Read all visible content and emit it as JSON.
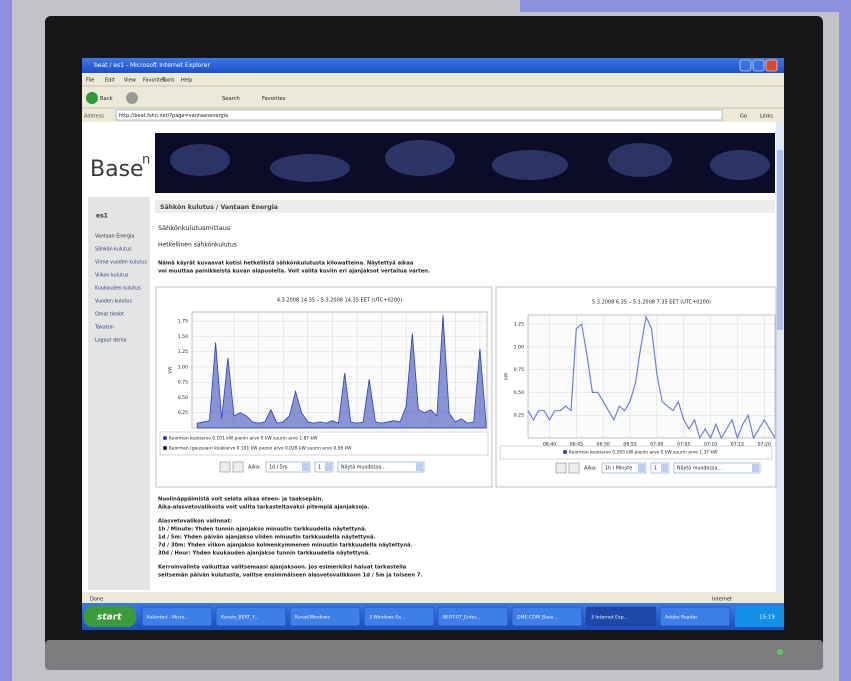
{
  "window": {
    "title": "beat / es1 - Microsoft Internet Explorer",
    "menu": [
      "File",
      "Edit",
      "View",
      "Favorites",
      "Tools",
      "Help"
    ],
    "toolbar": [
      "Back",
      "Search",
      "Favorites"
    ],
    "address_label": "Address",
    "address": "http://beat.fshn.net/?page=vantaanenergia",
    "go": "Go",
    "links": "Links"
  },
  "page": {
    "logo": "Base",
    "logo_sup": "n",
    "sidebar": {
      "title": "es1",
      "items": [
        "Vantaan Energia",
        "Sähkön kulutus",
        "Viime vuoden kulutus",
        "Viikon kulutus",
        "Kuukauden kulutus",
        "Vuoden kulutus",
        "Omat tiedot",
        "Takaisin",
        "Logout demo"
      ]
    },
    "breadcrumb": "Sähkön kulutus / Vantaan Energia",
    "heading": "Sähkönkulutusmittaus",
    "subheading": "Hetkellinen sähkönkulutus",
    "intro": [
      "Nämä käyrät kuvaavat kotisi hetkellistä sähkönkulutusta kilowatteina. Näytettyä aikaa",
      "voi muuttaa painikkeista kuvan alapuolella. Voit valita kuviin eri ajanjaksot vertailua varten."
    ],
    "charts": [
      {
        "type": "line",
        "area": true,
        "color": "#2b3fb8",
        "title": "4.3.2008 14.35 – 5.3.2008 14.35 EET (UTC+0200)",
        "ylabel": "kW",
        "xlim": [
          14.58,
          38.58
        ],
        "xticks": [
          {
            "value": 18,
            "label": "18:00"
          },
          {
            "value": 20,
            "label": "20:00"
          },
          {
            "value": 22,
            "label": "22:00"
          },
          {
            "value": 24,
            "label": "00:00"
          },
          {
            "value": 26,
            "label": "02:00"
          },
          {
            "value": 28,
            "label": "04:00"
          },
          {
            "value": 30,
            "label": "06:00"
          },
          {
            "value": 32,
            "label": "08:00"
          },
          {
            "value": 34,
            "label": "10:00"
          },
          {
            "value": 36,
            "label": "12:00"
          },
          {
            "value": 38,
            "label": "14:00"
          }
        ],
        "ylim": [
          0,
          1.9
        ],
        "yticks": [
          0.25,
          {
            "value": 0.5,
            "label": "0.50"
          },
          0.75,
          {
            "value": 1,
            "label": "1.00"
          },
          1.25,
          {
            "value": 1.5,
            "label": "1.50"
          },
          1.75
        ],
        "x": [
          15,
          15.5,
          16,
          16.5,
          17,
          17.5,
          18,
          18.5,
          19,
          19.5,
          20,
          20.5,
          21,
          21.5,
          22,
          22.5,
          23,
          23.5,
          24,
          24.5,
          25,
          25.5,
          26,
          26.5,
          27,
          27.5,
          28,
          28.5,
          29,
          29.5,
          30,
          30.5,
          31,
          31.5,
          32,
          32.5,
          33,
          33.5,
          34,
          34.5,
          35,
          35.5,
          36,
          36.5,
          37,
          37.5,
          38,
          38.5
        ],
        "values": [
          0.08,
          0.1,
          0.12,
          1.4,
          0.15,
          1.15,
          0.2,
          0.25,
          0.2,
          0.1,
          0.08,
          0.1,
          0.3,
          0.08,
          0.1,
          0.2,
          0.6,
          0.25,
          0.1,
          0.08,
          0.1,
          0.08,
          0.12,
          0.08,
          0.9,
          0.1,
          0.08,
          0.1,
          0.8,
          0.1,
          0.08,
          0.1,
          0.12,
          0.1,
          0.35,
          1.55,
          0.3,
          0.25,
          0.3,
          0.2,
          1.85,
          0.25,
          0.1,
          0.15,
          0.08,
          0.1,
          1.3,
          0.1
        ],
        "legend": [
          "Kuorman keskiarvo 0.101 kW pienin arvo 0 kW suurin arvo 1.87 kW",
          "Kuorman (gaussian) keskiarvo 0.101 kW pienin arvo 0.028 kW suurin arvo 0.56 kW"
        ],
        "legend_colors": [
          "#2b3fb8",
          "#111111"
        ],
        "controls": {
          "label": "Aika:",
          "period": "1d / 5m",
          "count": "1",
          "format": "Näytä muodossa..."
        }
      },
      {
        "type": "line",
        "area": false,
        "color": "#6f7fe0",
        "title": "5.3.2008 6.35 – 5.3.2008 7.35 EET (UTC+0200)",
        "ylabel": "kW",
        "xlim": [
          396,
          442
        ],
        "xticks": [
          {
            "value": 400,
            "label": "06:40"
          },
          {
            "value": 405,
            "label": "06:45"
          },
          {
            "value": 410,
            "label": "06:50"
          },
          {
            "value": 415,
            "label": "06:55"
          },
          {
            "value": 420,
            "label": "07:00"
          },
          {
            "value": 425,
            "label": "07:05"
          },
          {
            "value": 430,
            "label": "07:10"
          },
          {
            "value": 435,
            "label": "07:15"
          },
          {
            "value": 440,
            "label": "07:20"
          }
        ],
        "ylim": [
          0,
          1.35
        ],
        "yticks": [
          0.25,
          {
            "value": 0.5,
            "label": "0.50"
          },
          0.75,
          {
            "value": 1,
            "label": "1.00"
          },
          1.25
        ],
        "x": [
          396,
          397,
          398,
          399,
          400,
          401,
          402,
          403,
          404,
          405,
          406,
          407,
          408,
          409,
          410,
          411,
          412,
          413,
          414,
          415,
          416,
          417,
          418,
          419,
          420,
          421,
          422,
          423,
          424,
          425,
          426,
          427,
          428,
          429,
          430,
          431,
          432,
          433,
          434,
          435,
          436,
          437,
          438,
          439,
          440,
          441,
          442
        ],
        "values": [
          0.3,
          0.2,
          0.3,
          0.3,
          0.2,
          0.3,
          0.3,
          0.35,
          0.3,
          1.2,
          1.25,
          0.9,
          0.5,
          0.5,
          0.4,
          0.3,
          0.2,
          0.35,
          0.3,
          0.4,
          0.6,
          1.0,
          1.33,
          1.2,
          0.7,
          0.4,
          0.35,
          0.3,
          0.4,
          0.2,
          0.1,
          0.2,
          0,
          0.1,
          0,
          0.15,
          0,
          0.1,
          0.2,
          0,
          0.15,
          0.25,
          0,
          0.1,
          0.2,
          0.1,
          0
        ],
        "legend": [
          "Kuorman keskiarvo 0.293 kW pienin arvo 0 kW suurin arvo 1.37 kW"
        ],
        "legend_colors": [
          "#2b3fb8"
        ],
        "controls": {
          "label": "Aika:",
          "period": "1h / Minute",
          "count": "1",
          "format": "Näytä muodossa..."
        }
      }
    ],
    "help": [
      "Nuolinäppäimistä voit selata aikaa eteen- ja taaksepäin.",
      "Aika-alasvetovalikosta voit valita tarkasteltavaksi pitempiä ajanjaksoja.",
      "Alasvetovalikon valinnat:",
      "1h / Minute: Yhden tunnin ajanjakso minuutin tarkkuudella näytettynä.",
      "1d / 5m: Yhden päivän ajanjakso viiden minuutin tarkkuudella näytettynä.",
      "7d / 30m: Yhden viikon ajanjakso kolmenkymmenen minuutin tarkkuudella näytettynä.",
      "30d / Hour: Yhden kuukauden ajanjakso tunnin tarkkuudella näytettynä.",
      "Kerroinvalinta vaikuttaa valitsemaasi ajanjaksoon. Jos esimerkiksi haluat tarkastella",
      "seitsemän päivän kulutusta, valitse ensimmäiseen alasvetovalikkoon 1d / 5m ja toiseen 7."
    ]
  },
  "status": {
    "left": "Done",
    "right": "Internet"
  },
  "taskbar": {
    "start": "start",
    "items": [
      "Kalenteri - Micro...",
      "Kansio_BEAT_Y...",
      "Kuvat/Windows",
      "3 Windows Ex...",
      "BEAT-07_Enter...",
      "DME-COM_Base...",
      "3 Internet Exp...",
      "Adobe Reader"
    ],
    "clock": "15:19"
  }
}
